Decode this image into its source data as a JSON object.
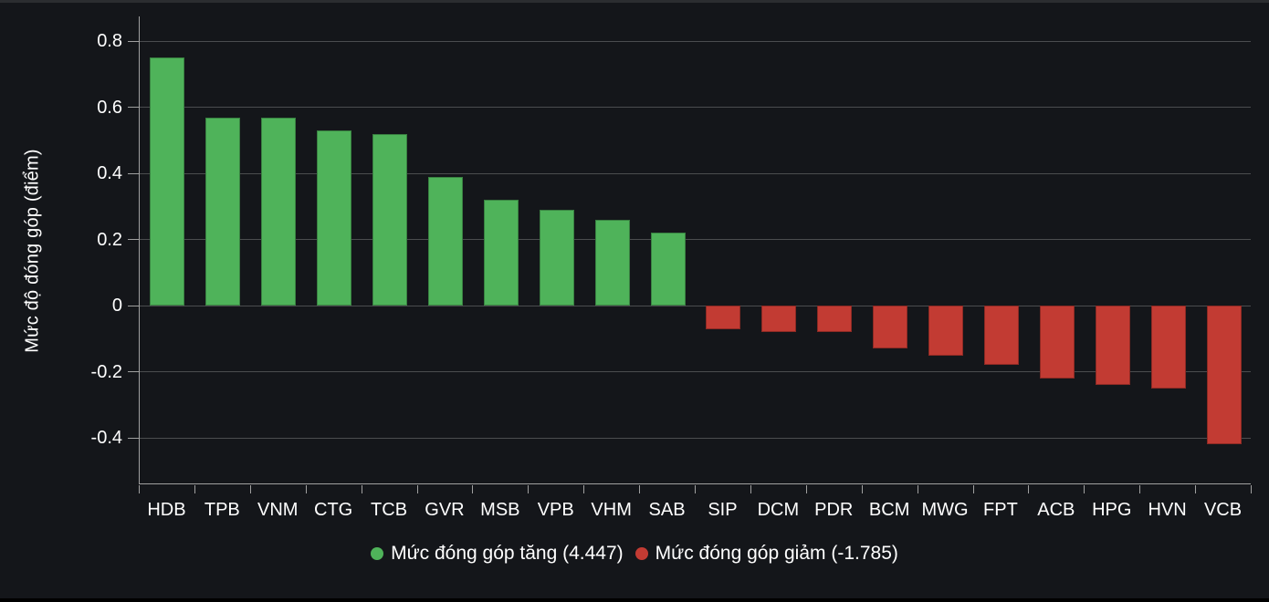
{
  "chart_data": {
    "type": "bar",
    "title": "",
    "xlabel": "",
    "ylabel": "Mức độ đóng góp (điểm)",
    "categories": [
      "HDB",
      "TPB",
      "VNM",
      "CTG",
      "TCB",
      "GVR",
      "MSB",
      "VPB",
      "VHM",
      "SAB",
      "SIP",
      "DCM",
      "PDR",
      "BCM",
      "MWG",
      "FPT",
      "ACB",
      "HPG",
      "HVN",
      "VCB"
    ],
    "values": [
      0.75,
      0.57,
      0.57,
      0.53,
      0.52,
      0.39,
      0.32,
      0.29,
      0.26,
      0.22,
      -0.07,
      -0.08,
      -0.08,
      -0.13,
      -0.15,
      -0.18,
      -0.22,
      -0.24,
      -0.25,
      -0.42
    ],
    "y_ticks": [
      0.8,
      0.6,
      0.4,
      0.2,
      0,
      -0.2,
      -0.4
    ],
    "y_tick_labels": [
      "0.8",
      "0.6",
      "0.4",
      "0.2",
      "0",
      "-0.2",
      "-0.4"
    ],
    "ylim": [
      -0.54,
      0.875
    ],
    "grid": true,
    "legend_position": "bottom",
    "legend": [
      {
        "label": "Mức đóng góp tăng (4.447)",
        "color": "#4fb35a"
      },
      {
        "label": "Mức đóng góp giảm (-1.785)",
        "color": "#c23b33"
      }
    ],
    "colors": {
      "positive": "#4fb35a",
      "negative": "#c23b33",
      "background": "#14161a",
      "gridline": "#4b4d4f",
      "axis": "#a0a0a0",
      "text": "#ffffff"
    }
  }
}
